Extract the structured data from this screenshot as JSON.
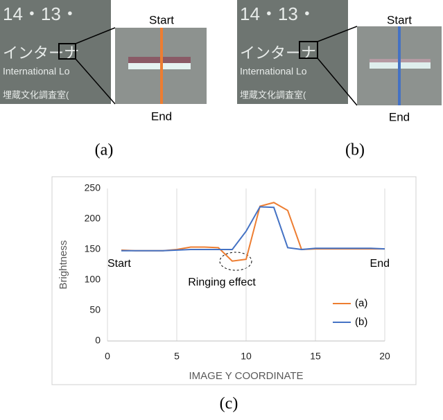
{
  "panels": [
    {
      "caption": "(a)",
      "start_label": "Start",
      "end_label": "End",
      "line_color": "#ed7d31",
      "photo_text": [
        "14・13・",
        "インターナ",
        "International Lo",
        "埋蔵文化調査室("
      ]
    },
    {
      "caption": "(b)",
      "start_label": "Start",
      "end_label": "End",
      "line_color": "#4472c4",
      "photo_text": [
        "14・13・",
        "インターナ",
        "International Lo",
        "埋蔵文化調査室("
      ]
    }
  ],
  "chart_data": {
    "type": "line",
    "caption": "(c)",
    "y_label": "Brightness",
    "x_label": "IMAGE Y COORDINATE",
    "x": [
      1,
      2,
      3,
      4,
      5,
      6,
      7,
      8,
      9,
      10,
      11,
      12,
      13,
      14,
      15,
      16,
      17,
      18,
      19,
      20
    ],
    "series": [
      {
        "name": "(a)",
        "color": "#ed7d31",
        "values": [
          149,
          148,
          148,
          148,
          150,
          154,
          154,
          153,
          131,
          134,
          221,
          227,
          214,
          150,
          151,
          151,
          151,
          151,
          151,
          151
        ]
      },
      {
        "name": "(b)",
        "color": "#4472c4",
        "values": [
          148,
          148,
          148,
          148,
          149,
          150,
          150,
          150,
          150,
          180,
          220,
          219,
          153,
          150,
          152,
          152,
          152,
          152,
          152,
          151
        ]
      }
    ],
    "xlim": [
      0,
      20
    ],
    "xticks": [
      0,
      5,
      10,
      15,
      20
    ],
    "ylim": [
      0,
      250
    ],
    "yticks": [
      0,
      50,
      100,
      150,
      200,
      250
    ],
    "grid": "x",
    "legend": "lower right",
    "annotations": [
      "Start",
      "End",
      "Ringing effect"
    ]
  }
}
